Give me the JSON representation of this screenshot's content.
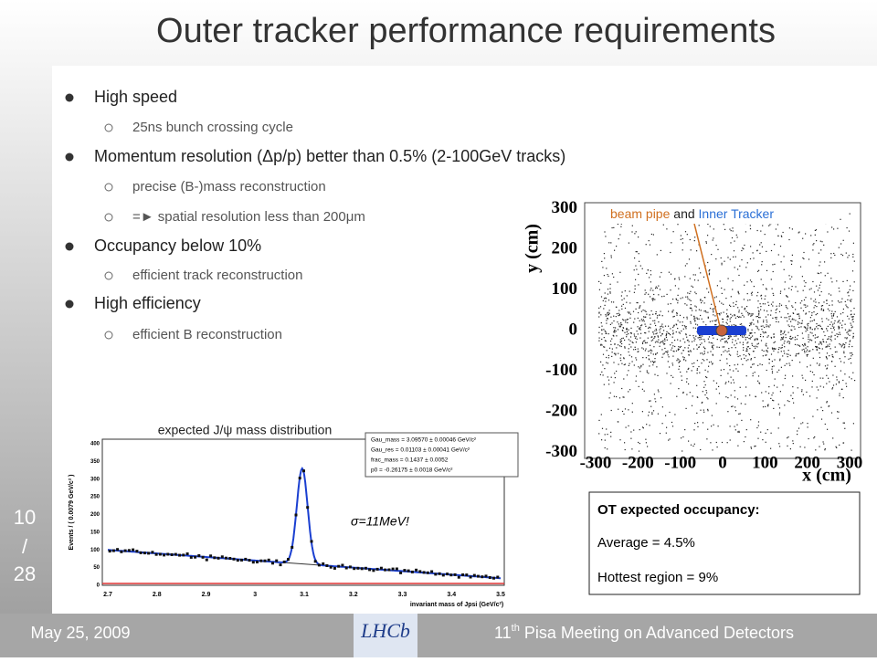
{
  "header": {
    "title": "Outer tracker performance requirements"
  },
  "bullets": [
    {
      "text": "High speed",
      "sub": [
        "25ns bunch crossing cycle"
      ]
    },
    {
      "text": "Momentum resolution (Δp/p) better than 0.5% (2-100GeV tracks)",
      "sub": [
        "precise (B-)mass reconstruction",
        "=► spatial resolution less than 200μm"
      ]
    },
    {
      "text": "Occupancy below 10%",
      "sub": [
        "efficient track reconstruction"
      ]
    },
    {
      "text": "High efficiency",
      "sub": [
        "efficient B reconstruction"
      ]
    }
  ],
  "scatter": {
    "annotation": [
      "beam pipe",
      "and",
      "Inner Tracker"
    ],
    "ylabel": "y (cm)",
    "xlabel": "x (cm)",
    "yticks": [
      300,
      200,
      100,
      0,
      -100,
      -200,
      -300
    ],
    "xticks": [
      -300,
      -200,
      -100,
      0,
      100,
      200,
      300
    ]
  },
  "mass_plot": {
    "caption": "expected J/ψ mass distribution",
    "fit_box": [
      "Gau_mass  =  3.09570 ± 0.00046 GeV/c²",
      "Gau_res  =  0.01103 ± 0.00041 GeV/c²",
      "frac_mass  =  0.1437 ± 0.0052",
      "p0  =  -0.26175 ± 0.0018 GeV/c²"
    ],
    "ylabel": "Events / ( 0.0079 GeV/c² )",
    "xlabel": "invariant mass of Jpsi (GeV/c²)",
    "yticks": [
      0,
      50,
      100,
      150,
      200,
      250,
      300,
      350,
      400
    ],
    "xticks": [
      2.7,
      2.8,
      2.9,
      3,
      3.1,
      3.2,
      3.3,
      3.4,
      3.5
    ],
    "sigma": "σ=11MeV!"
  },
  "occupancy": {
    "title": "OT expected occupancy:",
    "lines": [
      "Average = 4.5%",
      "Hottest region = 9%"
    ]
  },
  "footer": {
    "date": "May 25, 2009",
    "page": [
      "10",
      "/",
      "28"
    ],
    "logo": "LHCb",
    "event": [
      "11",
      "th",
      " Pisa Meeting on Advanced Detectors"
    ]
  }
}
